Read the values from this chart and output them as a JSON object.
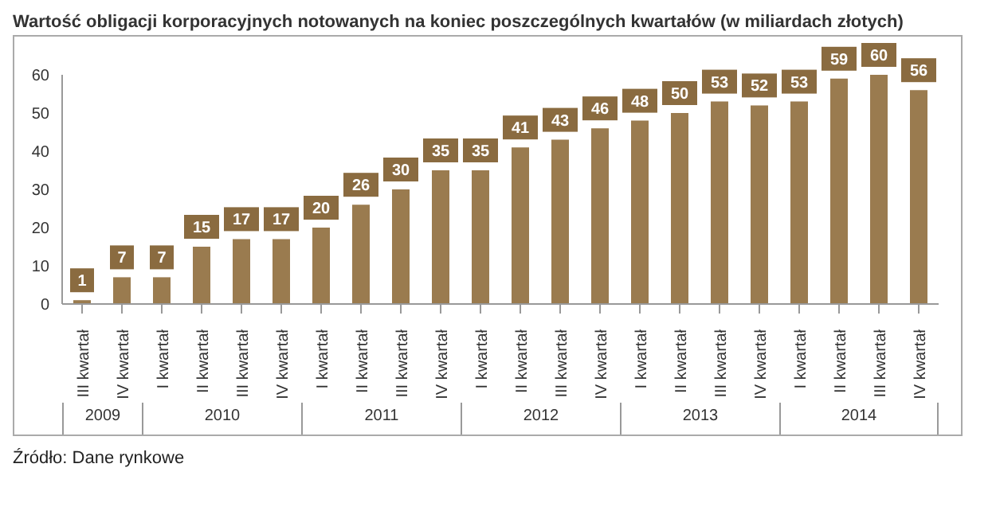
{
  "chart_data": {
    "type": "bar",
    "title": "Wartość obligacji korporacyjnych notowanych na koniec poszczególnych kwartałów (w miliardach złotych)",
    "categories": [
      "III kwartał",
      "IV kwartał",
      "I kwartał",
      "II kwartał",
      "III kwartał",
      "IV kwartał",
      "I kwartał",
      "II kwartał",
      "III kwartał",
      "IV kwartał",
      "I kwartał",
      "II kwartał",
      "III kwartał",
      "IV kwartał",
      "I kwartał",
      "II kwartał",
      "III kwartał",
      "IV kwartał",
      "I kwartał",
      "II kwartał",
      "III kwartał",
      "IV kwartał"
    ],
    "values": [
      1,
      7,
      7,
      15,
      17,
      17,
      20,
      26,
      30,
      35,
      35,
      41,
      43,
      46,
      48,
      50,
      53,
      52,
      53,
      59,
      60,
      56
    ],
    "color": "#9a7b4f",
    "ylim": [
      0,
      60
    ],
    "yticks": [
      0,
      10,
      20,
      30,
      40,
      50,
      60
    ],
    "data_labels": true,
    "annotations": [
      "2009",
      "2010",
      "2011",
      "2012",
      "2013",
      "2014",
      "Źródło: Dane rynkowe"
    ]
  }
}
